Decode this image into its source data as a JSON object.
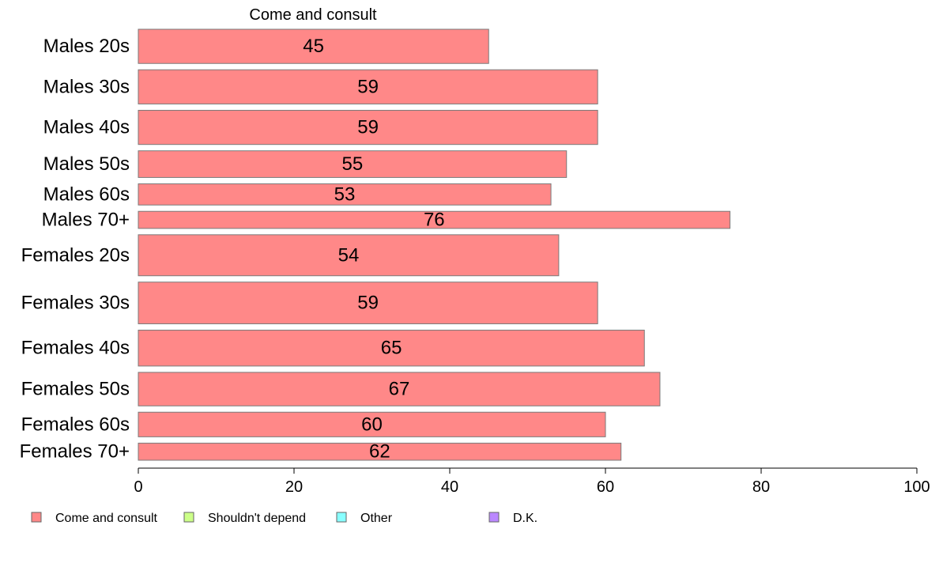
{
  "chart_data": {
    "type": "bar",
    "orientation": "horizontal",
    "title": "Come and consult",
    "categories": [
      "Males 20s",
      "Males 30s",
      "Males 40s",
      "Males 50s",
      "Males 60s",
      "Males 70+",
      "Females 20s",
      "Females 30s",
      "Females 40s",
      "Females 50s",
      "Females 60s",
      "Females 70+"
    ],
    "series": [
      {
        "name": "Come and consult",
        "values": [
          45,
          59,
          59,
          55,
          53,
          76,
          54,
          59,
          65,
          67,
          60,
          62
        ],
        "color": "#ff8888"
      }
    ],
    "data_labels": [
      "45",
      "59",
      "59",
      "55",
      "53",
      "76",
      "54",
      "59",
      "65",
      "67",
      "60",
      "62"
    ],
    "group_weights": [
      1.0,
      1.0,
      1.0,
      0.78,
      0.62,
      0.5,
      1.2,
      1.22,
      1.05,
      0.98,
      0.72,
      0.5
    ],
    "xlim": [
      0,
      100
    ],
    "xticks": [
      0,
      20,
      40,
      60,
      80,
      100
    ],
    "grid": false,
    "legend": {
      "placement": "bottom-left",
      "items": [
        {
          "label": "Come and consult",
          "color": "#ff8888"
        },
        {
          "label": "Shouldn't depend",
          "color": "#ccff88"
        },
        {
          "label": "Other",
          "color": "#88ffff"
        },
        {
          "label": "D.K.",
          "color": "#bb88ff"
        }
      ]
    }
  }
}
